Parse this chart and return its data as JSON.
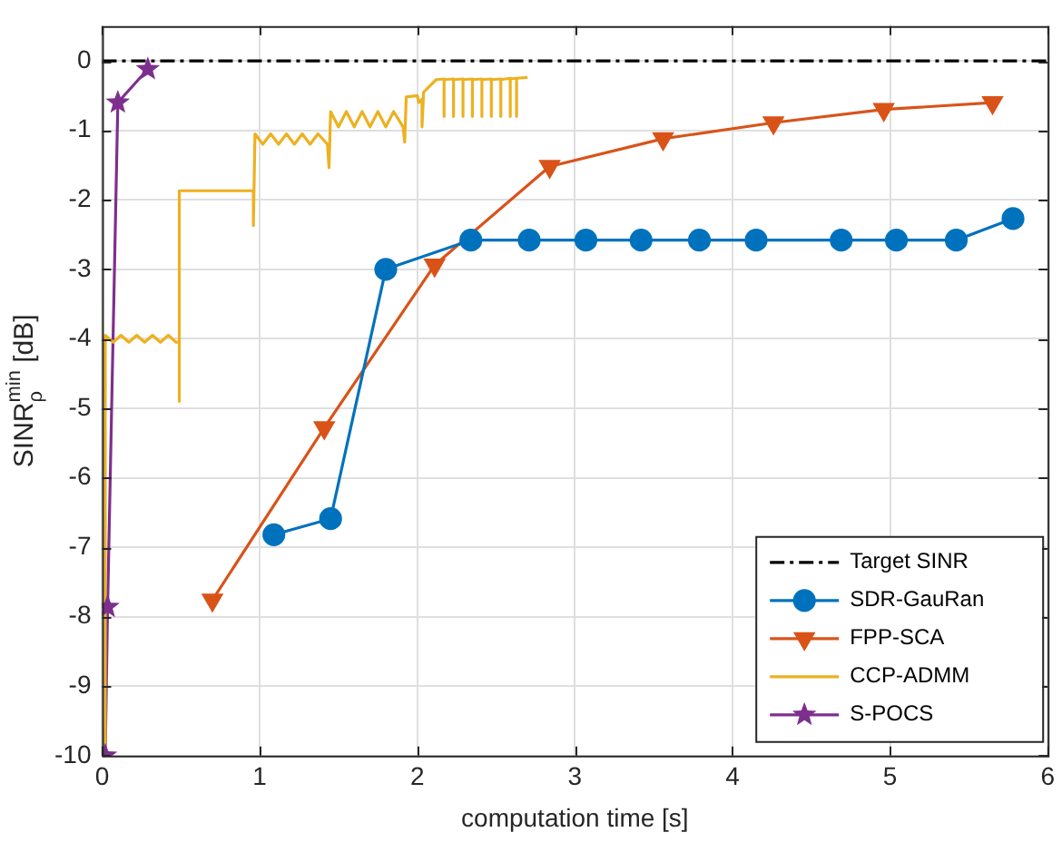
{
  "chart_data": {
    "type": "line",
    "xlabel": "computation time [s]",
    "ylabel": "SINR$^{min}$$_{ρ}$ [dB]",
    "xlim": [
      0,
      6
    ],
    "xticks": [
      0,
      1,
      2,
      3,
      4,
      5,
      6
    ],
    "ylim": [
      -10,
      0.5
    ],
    "yticks": [
      -10,
      -9,
      -8,
      -7,
      -6,
      -5,
      -4,
      -3,
      -2,
      -1,
      0
    ],
    "grid": true,
    "legend": "bottom right",
    "ref_lines": [
      {
        "axis": "y",
        "value": 0,
        "label": "Target SINR",
        "color": "#000000",
        "line_style": "dashdot"
      }
    ],
    "series": [
      {
        "name": "SDR-GauRan",
        "color": "#0072bd",
        "marker": "circle",
        "x": [
          1.09,
          1.45,
          1.8,
          2.34,
          2.71,
          3.07,
          3.42,
          3.79,
          4.15,
          4.69,
          5.04,
          5.42,
          5.78
        ],
        "values": [
          -6.82,
          -6.59,
          -3.0,
          -2.58,
          -2.58,
          -2.58,
          -2.58,
          -2.58,
          -2.58,
          -2.58,
          -2.58,
          -2.58,
          -2.27
        ]
      },
      {
        "name": "FPP-SCA",
        "color": "#d95319",
        "marker": "triangle",
        "x": [
          0.7,
          1.41,
          2.11,
          2.84,
          3.56,
          4.26,
          4.96,
          5.65
        ],
        "values": [
          -7.76,
          -5.28,
          -2.94,
          -1.52,
          -1.12,
          -0.89,
          -0.7,
          -0.6
        ]
      },
      {
        "name": "CCP-ADMM",
        "color": "#edb120",
        "marker": "none",
        "x": [
          0.01,
          0.02,
          0.07,
          0.12,
          0.17,
          0.22,
          0.27,
          0.32,
          0.37,
          0.42,
          0.47,
          0.49,
          0.49,
          0.49,
          0.96,
          0.96,
          0.97,
          1.02,
          1.07,
          1.12,
          1.17,
          1.22,
          1.27,
          1.32,
          1.37,
          1.43,
          1.44,
          1.45,
          1.5,
          1.55,
          1.6,
          1.65,
          1.7,
          1.75,
          1.8,
          1.85,
          1.91,
          1.92,
          1.93,
          2.0,
          2.01,
          2.03,
          2.03,
          2.04,
          2.12,
          2.17,
          2.17,
          2.17,
          2.23,
          2.23,
          2.23,
          2.29,
          2.29,
          2.29,
          2.35,
          2.35,
          2.35,
          2.41,
          2.41,
          2.41,
          2.47,
          2.47,
          2.47,
          2.53,
          2.53,
          2.53,
          2.59,
          2.59,
          2.59,
          2.63,
          2.63,
          2.63,
          2.7
        ],
        "values": [
          -10,
          -3.95,
          -4.05,
          -3.95,
          -4.05,
          -3.95,
          -4.05,
          -3.95,
          -4.05,
          -3.95,
          -4.05,
          -4.05,
          -4.9,
          -1.87,
          -1.87,
          -2.37,
          -1.05,
          -1.2,
          -1.05,
          -1.2,
          -1.05,
          -1.2,
          -1.05,
          -1.2,
          -1.05,
          -1.2,
          -1.54,
          -0.73,
          -0.95,
          -0.73,
          -0.95,
          -0.73,
          -0.95,
          -0.73,
          -0.95,
          -0.73,
          -0.95,
          -1.17,
          -0.52,
          -0.5,
          -0.6,
          -0.55,
          -0.95,
          -0.45,
          -0.27,
          -0.26,
          -0.8,
          -0.27,
          -0.26,
          -0.8,
          -0.27,
          -0.26,
          -0.8,
          -0.27,
          -0.26,
          -0.8,
          -0.27,
          -0.26,
          -0.8,
          -0.27,
          -0.26,
          -0.8,
          -0.27,
          -0.26,
          -0.8,
          -0.27,
          -0.25,
          -0.8,
          -0.26,
          -0.25,
          -0.8,
          -0.25,
          -0.24
        ]
      },
      {
        "name": "S-POCS",
        "color": "#7e2f8e",
        "marker": "star",
        "x": [
          0.02,
          0.035,
          0.1,
          0.29
        ],
        "values": [
          -10,
          -7.86,
          -0.6,
          -0.12
        ]
      }
    ]
  }
}
